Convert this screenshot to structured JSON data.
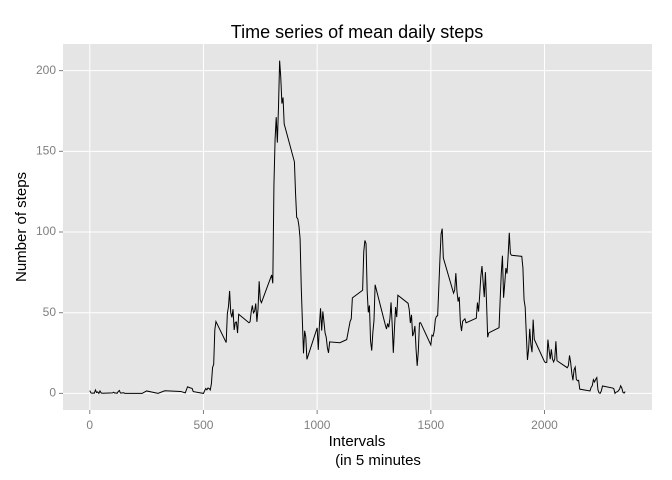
{
  "chart_data": {
    "type": "line",
    "title": "Time series of mean daily steps",
    "x_label": [
      "Intervals",
      "(in 5 minutes"
    ],
    "y_label": "Number of steps",
    "color": "#000000",
    "grid": true,
    "xlim": [
      -117.75,
      2472.75
    ],
    "xticks": [
      0,
      500,
      1000,
      1500,
      2000
    ],
    "ylim": [
      -10.3,
      216.5
    ],
    "yticks": [
      0,
      50,
      100,
      150,
      200
    ],
    "x": [
      0,
      5,
      10,
      15,
      20,
      25,
      30,
      35,
      40,
      45,
      50,
      55,
      100,
      105,
      110,
      115,
      120,
      125,
      130,
      135,
      140,
      145,
      150,
      155,
      200,
      230,
      250,
      300,
      330,
      400,
      420,
      430,
      440,
      450,
      455,
      500,
      505,
      510,
      515,
      520,
      525,
      530,
      535,
      540,
      545,
      550,
      555,
      600,
      605,
      610,
      615,
      620,
      625,
      630,
      635,
      640,
      645,
      650,
      655,
      700,
      705,
      710,
      715,
      720,
      725,
      730,
      735,
      740,
      745,
      750,
      755,
      800,
      805,
      810,
      815,
      820,
      825,
      830,
      835,
      840,
      845,
      850,
      855,
      900,
      905,
      910,
      915,
      920,
      925,
      930,
      935,
      940,
      945,
      950,
      955,
      1000,
      1005,
      1010,
      1015,
      1020,
      1025,
      1030,
      1035,
      1040,
      1045,
      1050,
      1055,
      1100,
      1130,
      1145,
      1150,
      1155,
      1200,
      1205,
      1210,
      1215,
      1220,
      1225,
      1230,
      1235,
      1240,
      1245,
      1250,
      1255,
      1300,
      1305,
      1310,
      1315,
      1320,
      1325,
      1330,
      1335,
      1340,
      1345,
      1350,
      1355,
      1400,
      1405,
      1410,
      1415,
      1420,
      1425,
      1430,
      1435,
      1440,
      1445,
      1450,
      1455,
      1500,
      1505,
      1510,
      1515,
      1520,
      1525,
      1530,
      1535,
      1540,
      1545,
      1550,
      1555,
      1600,
      1605,
      1610,
      1615,
      1620,
      1625,
      1630,
      1635,
      1640,
      1645,
      1650,
      1655,
      1700,
      1705,
      1710,
      1715,
      1720,
      1725,
      1730,
      1735,
      1740,
      1745,
      1750,
      1755,
      1800,
      1805,
      1810,
      1815,
      1820,
      1825,
      1830,
      1835,
      1840,
      1845,
      1850,
      1855,
      1900,
      1905,
      1910,
      1915,
      1920,
      1925,
      1930,
      1935,
      1940,
      1945,
      1950,
      1955,
      2000,
      2005,
      2010,
      2015,
      2020,
      2025,
      2030,
      2035,
      2040,
      2045,
      2050,
      2055,
      2100,
      2105,
      2110,
      2115,
      2120,
      2125,
      2130,
      2135,
      2140,
      2145,
      2150,
      2155,
      2200,
      2205,
      2210,
      2215,
      2220,
      2225,
      2230,
      2235,
      2240,
      2245,
      2250,
      2255,
      2300,
      2305,
      2310,
      2315,
      2320,
      2325,
      2330,
      2335,
      2340,
      2345,
      2350,
      2355
    ],
    "values": [
      1.7,
      0.3,
      0.1,
      0.2,
      0.1,
      2.1,
      0.5,
      0.9,
      0,
      1.5,
      0.3,
      0.1,
      0.3,
      0.7,
      0.2,
      0.3,
      0,
      1.1,
      1.8,
      0.2,
      0.2,
      0.4,
      0.3,
      0,
      0,
      0,
      1.5,
      0,
      1.6,
      1.2,
      0.3,
      4.1,
      3.5,
      3.1,
      1.1,
      0,
      1.6,
      3,
      2.2,
      3.3,
      3,
      2.1,
      6.1,
      16,
      18,
      39.5,
      44.5,
      31.5,
      49.3,
      53.8,
      63.5,
      50,
      47.1,
      52.2,
      39.3,
      44,
      44.2,
      37.4,
      49,
      43.8,
      44.4,
      50.5,
      54.5,
      49.9,
      51,
      55.7,
      44.3,
      52.3,
      69.5,
      57.8,
      56.2,
      73.4,
      68.2,
      129.4,
      157.5,
      171.2,
      155.4,
      177.3,
      206.2,
      195.9,
      179.6,
      183.4,
      167,
      143.5,
      124,
      109.1,
      108.1,
      103.7,
      95.9,
      66.2,
      45.2,
      24.8,
      38.8,
      34.98,
      21.1,
      40.6,
      26.98,
      42.4,
      52.7,
      38.9,
      50.8,
      44.3,
      37.4,
      34.7,
      28.3,
      25.1,
      31.9,
      31.4,
      33.3,
      44.6,
      46.2,
      59.2,
      63.9,
      87.7,
      94.8,
      92.8,
      63.4,
      50.2,
      54.5,
      32.4,
      26.5,
      37.7,
      45.1,
      67.3,
      42.3,
      39.9,
      43.3,
      40.98,
      46.2,
      56.4,
      42.8,
      25.1,
      39.96,
      53.5,
      47.3,
      60.8,
      55.8,
      51.96,
      43.6,
      48.7,
      35.5,
      37.5,
      41.8,
      27.5,
      17.1,
      26.1,
      43.6,
      43.8,
      30,
      36.1,
      35.5,
      38.8,
      45.96,
      47.8,
      48.1,
      65.3,
      82.9,
      98.7,
      102.1,
      83.96,
      62.1,
      64.1,
      74.5,
      63.2,
      56.9,
      59.8,
      43.9,
      38.6,
      44.7,
      45.5,
      46.2,
      43.7,
      46.6,
      56.3,
      50.7,
      61.2,
      72.7,
      78.9,
      68.9,
      59.7,
      75.1,
      56.5,
      34.8,
      37.5,
      40.7,
      58,
      74.7,
      85.3,
      59.3,
      67.8,
      77.7,
      74.2,
      85.3,
      99.5,
      86.6,
      85.6,
      84.9,
      77.8,
      58,
      53.4,
      36.3,
      20.7,
      27.4,
      40,
      30.2,
      25.5,
      45.7,
      33.5,
      19.6,
      19,
      19.3,
      33.3,
      26.8,
      21.2,
      27.3,
      21.3,
      19.5,
      21.3,
      32.3,
      20.2,
      15.9,
      17.2,
      23.5,
      19.2,
      12.5,
      8.1,
      14.7,
      16.3,
      8.7,
      7.8,
      8.1,
      2.6,
      1.5,
      3.7,
      4.8,
      8.5,
      7.1,
      8.7,
      9.8,
      2.2,
      0.3,
      0.1,
      1.6,
      4.6,
      3.3,
      2.8,
      0,
      0.8,
      0.96,
      1.6,
      2.6,
      4.7,
      3.3,
      0.6,
      0.2,
      1.1
    ]
  }
}
